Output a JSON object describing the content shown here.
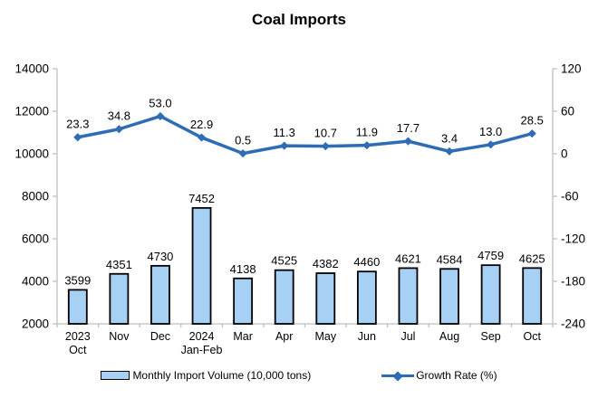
{
  "chart_data": {
    "type": "bar+line combo",
    "title": "Coal Imports",
    "categories": [
      "2023\nOct",
      "Nov",
      "Dec",
      "2024\nJan-Feb",
      "Mar",
      "Apr",
      "May",
      "Jun",
      "Jul",
      "Aug",
      "Sep",
      "Oct"
    ],
    "series": [
      {
        "name": "Monthly Import Volume (10,000 tons)",
        "type": "bar",
        "axis": "left",
        "values": [
          3599,
          4351,
          4730,
          7452,
          4138,
          4525,
          4382,
          4460,
          4621,
          4584,
          4759,
          4625
        ]
      },
      {
        "name": "Growth Rate (%)",
        "type": "line",
        "axis": "right",
        "values": [
          23.3,
          34.8,
          53.0,
          22.9,
          0.5,
          11.3,
          10.7,
          11.9,
          17.7,
          3.4,
          13.0,
          28.5
        ]
      }
    ],
    "left_axis": {
      "min": 2000,
      "max": 14000,
      "step": 2000
    },
    "right_axis": {
      "min": -240,
      "max": 120,
      "step": 60
    },
    "grid": false,
    "legend_position": "bottom"
  },
  "colors": {
    "bar_fill": "#A6D1F5",
    "bar_border": "#000000",
    "line": "#2E6DB5",
    "axis": "#BFBFBF",
    "text": "#000000"
  }
}
